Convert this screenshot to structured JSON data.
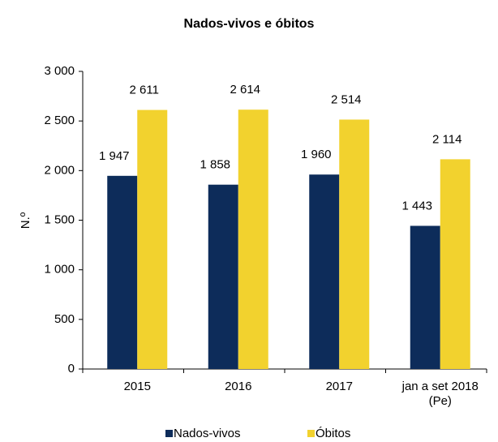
{
  "chart_data": {
    "type": "bar",
    "title": "Nados-vivos e óbitos",
    "ylabel": "N.º",
    "categories": [
      "2015",
      "2016",
      "2017",
      "jan a set 2018\n(Pe)"
    ],
    "series": [
      {
        "name": "Nados-vivos",
        "color": "#0d2c5a",
        "values": [
          1947,
          1858,
          1960,
          1443
        ],
        "value_labels": [
          "1 947",
          "1 858",
          "1 960",
          "1 443"
        ]
      },
      {
        "name": "Óbitos",
        "color": "#f2d22e",
        "values": [
          2611,
          2614,
          2514,
          2114
        ],
        "value_labels": [
          "2 611",
          "2 614",
          "2 514",
          "2 114"
        ]
      }
    ],
    "ylim": [
      0,
      3000
    ],
    "yticks": [
      0,
      500,
      {
        "value": 1000,
        "label": "1 000"
      },
      {
        "value": 1500,
        "label": "1 500"
      },
      {
        "value": 2000,
        "label": "2 000"
      },
      {
        "value": 2500,
        "label": "2 500"
      },
      {
        "value": 3000,
        "label": "3 000"
      }
    ],
    "legend": "bottom"
  }
}
